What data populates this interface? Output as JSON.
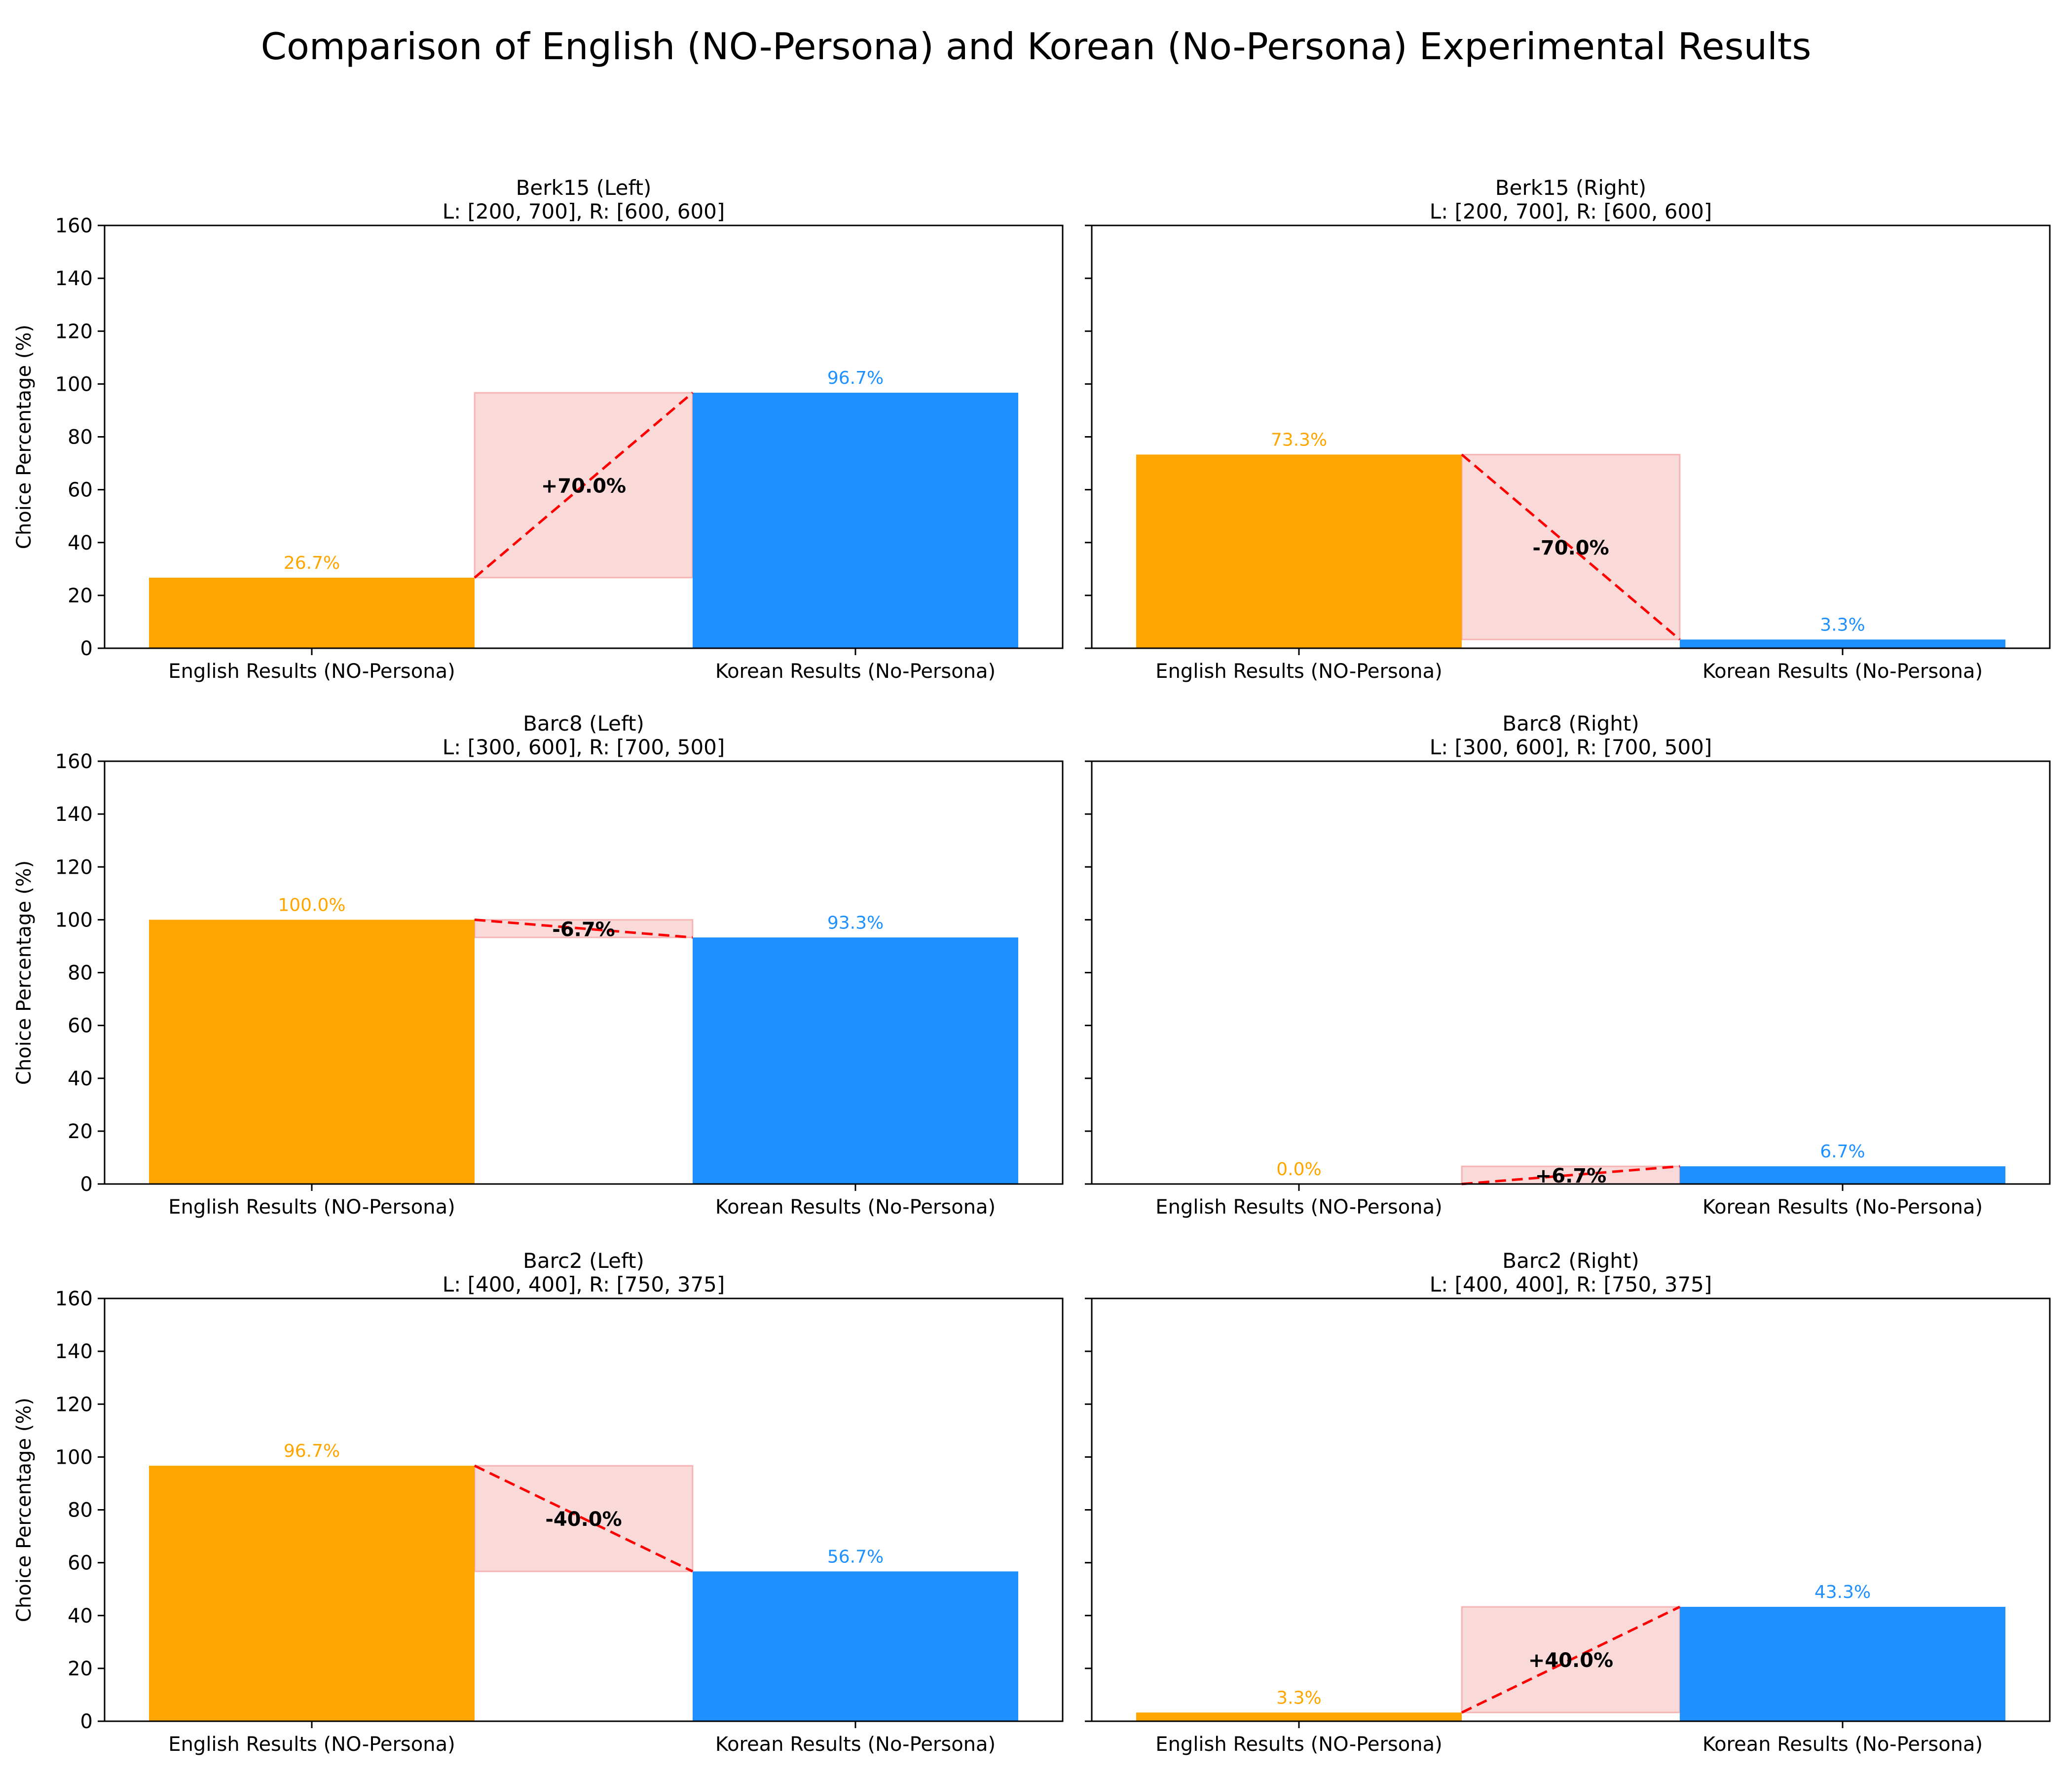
{
  "figure": {
    "suptitle": "Comparison of English (NO-Persona) and Korean (No-Persona) Experimental Results",
    "colors": {
      "english": "#FFA500",
      "korean": "#1E90FF",
      "diff_fill": "#F08080",
      "diff_line": "#FF0000",
      "axis": "#000000"
    }
  },
  "chart_data": [
    {
      "type": "bar",
      "title": "Berk15 (Left)",
      "subtitle": "L: [200, 700], R: [600, 600]",
      "categories": [
        "English Results (NO-Persona)",
        "Korean Results (No-Persona)"
      ],
      "values": [
        26.7,
        96.7
      ],
      "value_labels": [
        "26.7%",
        "96.7%"
      ],
      "diff_label": "+70.0%",
      "ylabel": "Choice Percentage (%)",
      "ylim": [
        0,
        160
      ],
      "yticks": [
        "0",
        "20",
        "40",
        "60",
        "80",
        "100",
        "120",
        "140",
        "160"
      ],
      "grid": false
    },
    {
      "type": "bar",
      "title": "Berk15 (Right)",
      "subtitle": "L: [200, 700], R: [600, 600]",
      "categories": [
        "English Results (NO-Persona)",
        "Korean Results (No-Persona)"
      ],
      "values": [
        73.3,
        3.3
      ],
      "value_labels": [
        "73.3%",
        "3.3%"
      ],
      "diff_label": "-70.0%",
      "ylabel": "",
      "ylim": [
        0,
        160
      ],
      "yticks": [],
      "grid": false
    },
    {
      "type": "bar",
      "title": "Barc8 (Left)",
      "subtitle": "L: [300, 600], R: [700, 500]",
      "categories": [
        "English Results (NO-Persona)",
        "Korean Results (No-Persona)"
      ],
      "values": [
        100.0,
        93.3
      ],
      "value_labels": [
        "100.0%",
        "93.3%"
      ],
      "diff_label": "-6.7%",
      "ylabel": "Choice Percentage (%)",
      "ylim": [
        0,
        160
      ],
      "yticks": [
        "0",
        "20",
        "40",
        "60",
        "80",
        "100",
        "120",
        "140",
        "160"
      ],
      "grid": false
    },
    {
      "type": "bar",
      "title": "Barc8 (Right)",
      "subtitle": "L: [300, 600], R: [700, 500]",
      "categories": [
        "English Results (NO-Persona)",
        "Korean Results (No-Persona)"
      ],
      "values": [
        0.0,
        6.7
      ],
      "value_labels": [
        "0.0%",
        "6.7%"
      ],
      "diff_label": "+6.7%",
      "ylabel": "",
      "ylim": [
        0,
        160
      ],
      "yticks": [],
      "grid": false
    },
    {
      "type": "bar",
      "title": "Barc2 (Left)",
      "subtitle": "L: [400, 400], R: [750, 375]",
      "categories": [
        "English Results (NO-Persona)",
        "Korean Results (No-Persona)"
      ],
      "values": [
        96.7,
        56.7
      ],
      "value_labels": [
        "96.7%",
        "56.7%"
      ],
      "diff_label": "-40.0%",
      "ylabel": "Choice Percentage (%)",
      "ylim": [
        0,
        160
      ],
      "yticks": [
        "0",
        "20",
        "40",
        "60",
        "80",
        "100",
        "120",
        "140",
        "160"
      ],
      "grid": false
    },
    {
      "type": "bar",
      "title": "Barc2 (Right)",
      "subtitle": "L: [400, 400], R: [750, 375]",
      "categories": [
        "English Results (NO-Persona)",
        "Korean Results (No-Persona)"
      ],
      "values": [
        3.3,
        43.3
      ],
      "value_labels": [
        "3.3%",
        "43.3%"
      ],
      "diff_label": "+40.0%",
      "ylabel": "",
      "ylim": [
        0,
        160
      ],
      "yticks": [],
      "grid": false
    }
  ]
}
